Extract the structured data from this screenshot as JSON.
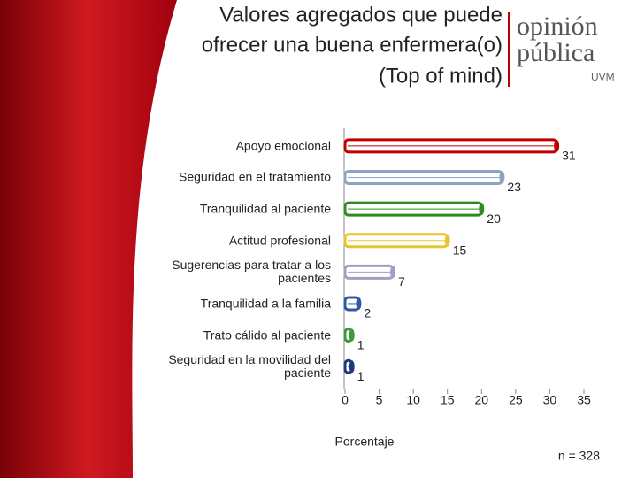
{
  "chart_data": {
    "type": "bar",
    "orientation": "horizontal",
    "title": [
      "Valores agregados que puede",
      "ofrecer una buena enfermera(o)",
      "(Top of mind)"
    ],
    "categories": [
      "Apoyo emocional",
      "Seguridad en el tratamiento",
      "Tranquilidad al paciente",
      "Actitud profesional",
      "Sugerencias para tratar a los pacientes",
      "Tranquilidad a la familia",
      "Trato cálido al paciente",
      "Seguridad en la movilidad del paciente"
    ],
    "values": [
      31,
      23,
      20,
      15,
      7,
      2,
      1,
      1
    ],
    "colors": [
      "#c00000",
      "#8ea3c4",
      "#2e8b1e",
      "#e8c530",
      "#a99bc6",
      "#2f58a8",
      "#3c9a3c",
      "#1f3a7a"
    ],
    "xlim": [
      0,
      35
    ],
    "xticks": [
      0,
      5,
      10,
      15,
      20,
      25,
      30,
      35
    ],
    "xlabel": "Porcentaje",
    "note": "n = 328",
    "logo": [
      "opinión",
      "pública",
      "UVM"
    ]
  }
}
